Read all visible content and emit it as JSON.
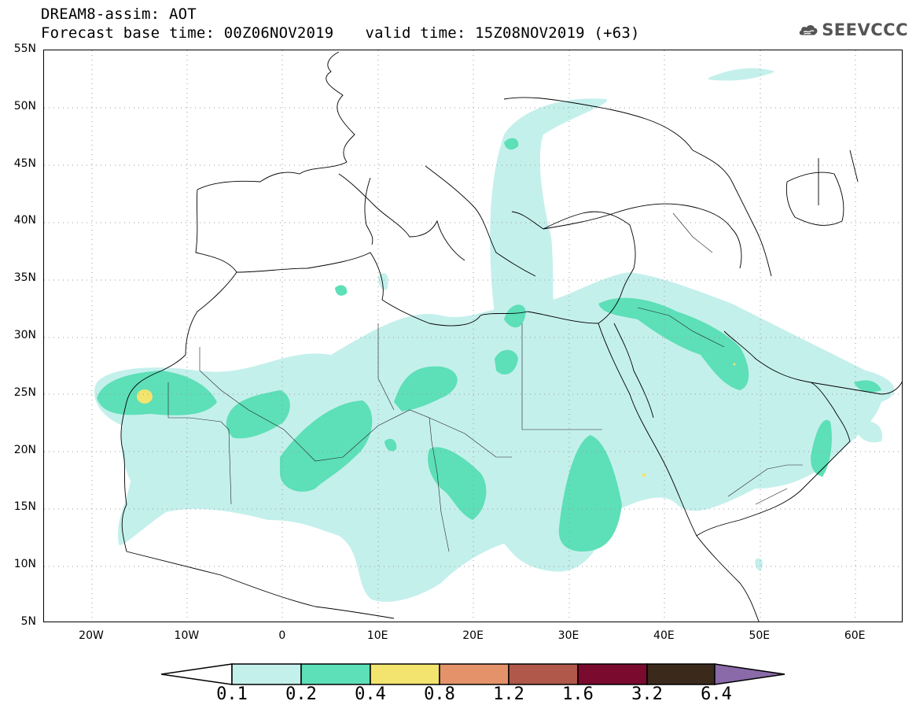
{
  "title": {
    "line1": "DREAM8-assim: AOT",
    "base_time": "Forecast base time: 00Z06NOV2019",
    "valid_time": "valid time: 15Z08NOV2019 (+63)"
  },
  "logo": {
    "text": "SEEVCCC",
    "icon": "cloud-icon"
  },
  "map": {
    "lat_labels": [
      "55N",
      "50N",
      "45N",
      "40N",
      "35N",
      "30N",
      "25N",
      "20N",
      "15N",
      "10N",
      "5N"
    ],
    "lon_labels": [
      "20W",
      "10W",
      "0",
      "10E",
      "20E",
      "30E",
      "40E",
      "50E",
      "60E"
    ]
  },
  "colorbar": {
    "levels": [
      "0.1",
      "0.2",
      "0.4",
      "0.8",
      "1.2",
      "1.6",
      "3.2",
      "6.4"
    ],
    "colors": [
      "#ffffff",
      "#c4f0ec",
      "#5ddfb7",
      "#f2e46e",
      "#e4926a",
      "#b0584a",
      "#7a0a2e",
      "#3b2a1c",
      "#8a6aa8"
    ]
  }
}
